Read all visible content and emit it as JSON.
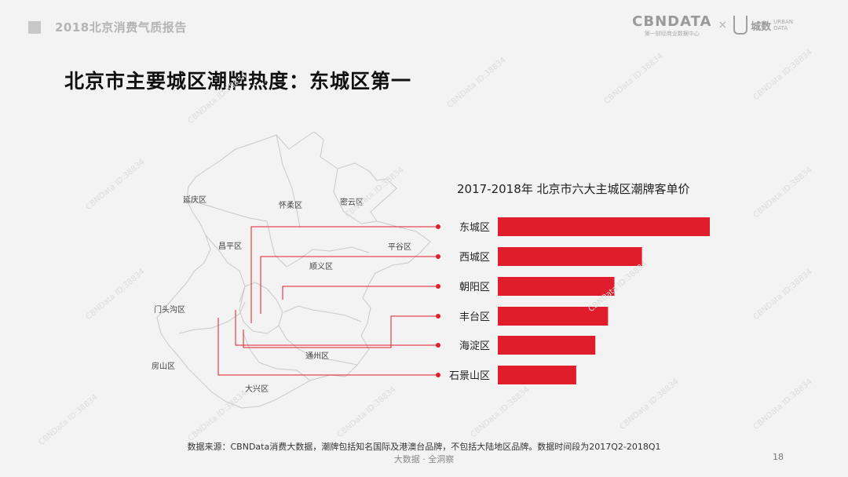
{
  "header": {
    "report_title": "2018北京消费气质报告"
  },
  "brand": {
    "cbn_logo": "CBNDATA",
    "cbn_sub": "第一财经商业数据中心",
    "separator": "×",
    "urban_cn": "城数",
    "urban_en_line1": "URBAN",
    "urban_en_line2": "DATA"
  },
  "main_title": "北京市主要城区潮牌热度：东城区第一",
  "map": {
    "district_labels": [
      "延庆区",
      "怀柔区",
      "密云区",
      "昌平区",
      "平谷区",
      "顺义区",
      "门头沟区",
      "房山区",
      "通州区",
      "大兴区"
    ]
  },
  "chart_data": {
    "type": "bar",
    "orientation": "horizontal",
    "title": "2017-2018年 北京市六大主城区潮牌客单价",
    "categories": [
      "东城区",
      "西城区",
      "朝阳区",
      "丰台区",
      "海淀区",
      "石景山区"
    ],
    "values": [
      100,
      68,
      55,
      52,
      46,
      37
    ],
    "xlim": [
      0,
      100
    ],
    "value_axis_shown": false,
    "grid": false,
    "bar_color": "#e01e2b"
  },
  "footer": {
    "source": "数据来源：CBNData消费大数据，潮牌包括知名国际及港澳台品牌，不包括大陆地区品牌。数据时间段为2017Q2-2018Q1",
    "slogan": "大数据 · 全洞察",
    "page_number": "18"
  },
  "watermark_text": "CBNData ID:38834",
  "colors": {
    "accent": "#e01e2b",
    "map_line": "#c9c9c9",
    "background": "#f3f3f3"
  }
}
